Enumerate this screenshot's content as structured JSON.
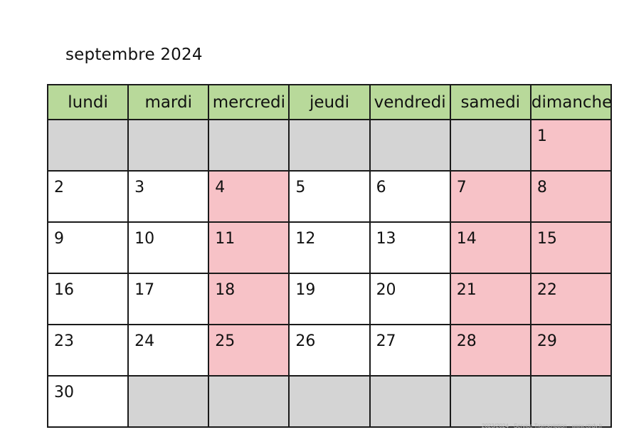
{
  "title": "septembre 2024",
  "weekdays": [
    "lundi",
    "mardi",
    "mercredi",
    "jeudi",
    "vendredi",
    "samedi",
    "dimanche"
  ],
  "weeks": [
    [
      "",
      "",
      "",
      "",
      "",
      "",
      "1"
    ],
    [
      "2",
      "3",
      "4",
      "5",
      "6",
      "7",
      "8"
    ],
    [
      "9",
      "10",
      "11",
      "12",
      "13",
      "14",
      "15"
    ],
    [
      "16",
      "17",
      "18",
      "19",
      "20",
      "21",
      "22"
    ],
    [
      "23",
      "24",
      "25",
      "26",
      "27",
      "28",
      "29"
    ],
    [
      "30",
      "",
      "",
      "",
      "",
      "",
      ""
    ]
  ],
  "colors": {
    "header": "#b8d99a",
    "holiday": "#f7c2c7",
    "empty": "#d4d4d4",
    "border": "#1a1a1a"
  },
  "footer": "2023/2024 - Service Transcription - www.ctrdv.fr"
}
